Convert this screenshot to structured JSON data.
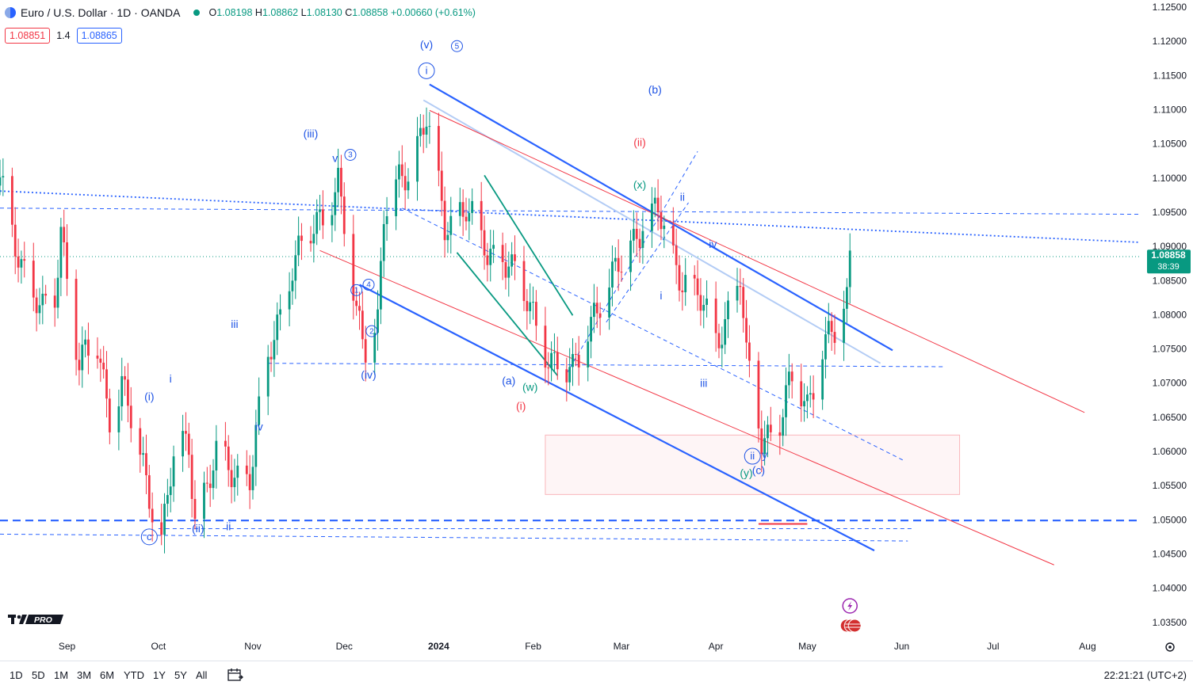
{
  "header": {
    "symbol_title": "Euro / U.S. Dollar · 1D · OANDA",
    "ohlc": {
      "o_label": "O",
      "o": "1.08198",
      "h_label": "H",
      "h": "1.08862",
      "l_label": "L",
      "l": "1.08130",
      "c_label": "C",
      "c": "1.08858",
      "change": "+0.00660 (+0.61%)"
    },
    "sell_price": "1.08851",
    "spread": "1.4",
    "buy_price": "1.08865"
  },
  "bottom_bar": {
    "timeframes": [
      "1D",
      "5D",
      "1M",
      "3M",
      "6M",
      "YTD",
      "1Y",
      "5Y",
      "All"
    ],
    "clock": "22:21:21 (UTC+2)"
  },
  "logo_text": "PRO",
  "colors": {
    "up": "#089981",
    "down": "#f23645",
    "blue": "#2962ff",
    "label_blue": "#1e53e5",
    "teal": "#089981",
    "red": "#f23645"
  },
  "chart_data": {
    "type": "candlestick",
    "y_axis": {
      "min": 1.03345,
      "max": 1.12615,
      "ticks": [
        "1.12500",
        "1.12000",
        "1.11500",
        "1.11000",
        "1.10500",
        "1.10000",
        "1.09500",
        "1.09000",
        "1.08500",
        "1.08000",
        "1.07500",
        "1.07000",
        "1.06500",
        "1.06000",
        "1.05500",
        "1.05000",
        "1.04500",
        "1.04000",
        "1.03500"
      ]
    },
    "x_axis": {
      "labels": [
        "Sep",
        "Oct",
        "Nov",
        "Dec",
        "2024",
        "Feb",
        "Mar",
        "Apr",
        "May",
        "Jun",
        "Jul",
        "Aug"
      ],
      "start_date": "2023-08-10",
      "end_date": "2024-08-20"
    },
    "last_price": {
      "value": "1.08858",
      "countdown": "38:39"
    },
    "anchors": [
      [
        "2023-08-10",
        1.099
      ],
      [
        "2023-08-14",
        1.092
      ],
      [
        "2023-08-18",
        1.087
      ],
      [
        "2023-08-24",
        1.08
      ],
      [
        "2023-08-28",
        1.082
      ],
      [
        "2023-08-30",
        1.093
      ],
      [
        "2023-09-05",
        1.073
      ],
      [
        "2023-09-11",
        1.075
      ],
      [
        "2023-09-15",
        1.066
      ],
      [
        "2023-09-19",
        1.07
      ],
      [
        "2023-09-25",
        1.059
      ],
      [
        "2023-10-02",
        1.048
      ],
      [
        "2023-10-06",
        1.059
      ],
      [
        "2023-10-11",
        1.061
      ],
      [
        "2023-10-13",
        1.051
      ],
      [
        "2023-10-20",
        1.059
      ],
      [
        "2023-10-25",
        1.057
      ],
      [
        "2023-10-31",
        1.057
      ],
      [
        "2023-11-06",
        1.073
      ],
      [
        "2023-11-14",
        1.088
      ],
      [
        "2023-11-21",
        1.092
      ],
      [
        "2023-11-29",
        1.1
      ],
      [
        "2023-12-05",
        1.079
      ],
      [
        "2023-12-08",
        1.076
      ],
      [
        "2023-12-12",
        1.08
      ],
      [
        "2023-12-14",
        1.095
      ],
      [
        "2023-12-22",
        1.101
      ],
      [
        "2023-12-28",
        1.11
      ],
      [
        "2024-01-03",
        1.092
      ],
      [
        "2024-01-10",
        1.097
      ],
      [
        "2024-01-17",
        1.088
      ],
      [
        "2024-01-24",
        1.089
      ],
      [
        "2024-02-01",
        1.079
      ],
      [
        "2024-02-05",
        1.075
      ],
      [
        "2024-02-14",
        1.071
      ],
      [
        "2024-02-21",
        1.081
      ],
      [
        "2024-02-27",
        1.085
      ],
      [
        "2024-03-08",
        1.094
      ],
      [
        "2024-03-13",
        1.095
      ],
      [
        "2024-03-18",
        1.088
      ],
      [
        "2024-03-21",
        1.086
      ],
      [
        "2024-03-26",
        1.083
      ],
      [
        "2024-04-01",
        1.076
      ],
      [
        "2024-04-09",
        1.086
      ],
      [
        "2024-04-11",
        1.073
      ],
      [
        "2024-04-16",
        1.062
      ],
      [
        "2024-04-22",
        1.065
      ],
      [
        "2024-04-26",
        1.07
      ],
      [
        "2024-05-01",
        1.067
      ],
      [
        "2024-05-06",
        1.076
      ],
      [
        "2024-05-10",
        1.077
      ],
      [
        "2024-05-14",
        1.082
      ],
      [
        "2024-05-15",
        1.0886
      ]
    ],
    "blue_labels": [
      {
        "t": "(v)",
        "x": "2023-12-28",
        "y": 1.1195
      },
      {
        "t": "(iii)",
        "x": "2023-11-20",
        "y": 1.1065
      },
      {
        "t": "v",
        "x": "2023-11-28",
        "y": 1.1029
      },
      {
        "t": "iii",
        "x": "2023-10-26",
        "y": 1.0786
      },
      {
        "t": "i",
        "x": "2023-10-05",
        "y": 1.0706
      },
      {
        "t": "(i)",
        "x": "2023-09-28",
        "y": 1.068
      },
      {
        "t": "iv",
        "x": "2023-11-03",
        "y": 1.0636
      },
      {
        "t": "(iv)",
        "x": "2023-12-09",
        "y": 1.0712
      },
      {
        "t": "(ii)",
        "x": "2023-10-14",
        "y": 1.0487
      },
      {
        "t": "ii",
        "x": "2023-10-24",
        "y": 1.049
      },
      {
        "t": "(b)",
        "x": "2024-03-12",
        "y": 1.1129
      },
      {
        "t": "ii",
        "x": "2024-03-21",
        "y": 1.0972
      },
      {
        "t": "iv",
        "x": "2024-03-31",
        "y": 1.0903
      },
      {
        "t": "i",
        "x": "2024-03-14",
        "y": 1.0828
      },
      {
        "t": "iii",
        "x": "2024-03-28",
        "y": 1.07
      },
      {
        "t": "(a)",
        "x": "2024-01-24",
        "y": 1.0703
      }
    ],
    "circle_labels": [
      {
        "t": "i",
        "x": "2023-12-28",
        "y": 1.1158
      },
      {
        "t": "5",
        "x": "2024-01-07",
        "y": 1.1194
      },
      {
        "t": "3",
        "x": "2023-12-03",
        "y": 1.1035
      },
      {
        "t": "4",
        "x": "2023-12-09",
        "y": 1.0845
      },
      {
        "t": "1",
        "x": "2023-12-05",
        "y": 1.0837
      },
      {
        "t": "2",
        "x": "2023-12-10",
        "y": 1.0777
      },
      {
        "t": "c",
        "x": "2023-09-28",
        "y": 1.0476
      },
      {
        "t": "ii",
        "x": "2024-04-13",
        "y": 1.0594
      }
    ],
    "teal_labels": [
      {
        "t": "(x)",
        "x": "2024-03-07",
        "y": 1.099
      },
      {
        "t": "(w)",
        "x": "2024-01-31",
        "y": 1.0694
      },
      {
        "t": "(y)",
        "x": "2024-04-11",
        "y": 1.0568
      }
    ],
    "red_labels": [
      {
        "t": "(ii)",
        "x": "2024-03-07",
        "y": 1.1052
      },
      {
        "t": "(i)",
        "x": "2024-01-28",
        "y": 1.0666
      }
    ],
    "extra_blue_labels": [
      {
        "t": "y",
        "x": "2024-04-17",
        "y": 1.0595
      },
      {
        "t": "(c)",
        "x": "2024-04-15",
        "y": 1.0572
      }
    ]
  }
}
